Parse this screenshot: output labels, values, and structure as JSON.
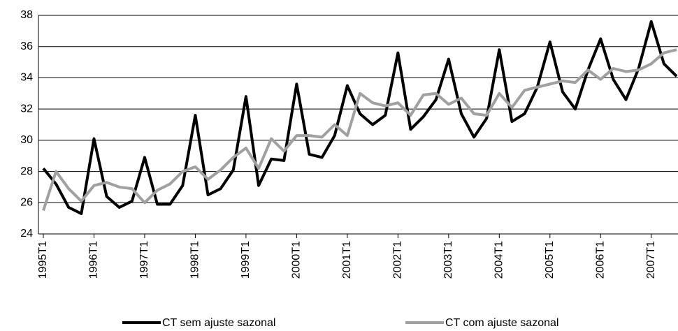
{
  "chart_data": {
    "type": "line",
    "categories": [
      "1995T1",
      null,
      null,
      null,
      "1996T1",
      null,
      null,
      null,
      "1997T1",
      null,
      null,
      null,
      "1998T1",
      null,
      null,
      null,
      "1999T1",
      null,
      null,
      null,
      "2000T1",
      null,
      null,
      null,
      "2001T1",
      null,
      null,
      null,
      "2002T1",
      null,
      null,
      null,
      "2003T1",
      null,
      null,
      null,
      "2004T1",
      null,
      null,
      null,
      "2005T1",
      null,
      null,
      null,
      "2006T1",
      null,
      null,
      null,
      "2007T1",
      null,
      null
    ],
    "series": [
      {
        "name": "CT sem ajuste sazonal",
        "color": "#000000",
        "values": [
          28.2,
          27.2,
          25.7,
          25.3,
          30.1,
          26.4,
          25.7,
          26.1,
          28.9,
          25.9,
          25.9,
          27.1,
          31.6,
          26.5,
          26.9,
          28.1,
          32.8,
          27.1,
          28.8,
          28.7,
          33.6,
          29.1,
          28.9,
          30.3,
          33.5,
          31.7,
          31.0,
          31.6,
          35.6,
          30.7,
          31.5,
          32.6,
          35.2,
          31.7,
          30.2,
          31.4,
          35.8,
          31.2,
          31.7,
          33.4,
          36.3,
          33.1,
          32.0,
          34.5,
          36.5,
          33.9,
          32.6,
          34.6,
          37.6,
          34.9,
          34.1
        ]
      },
      {
        "name": "CT com ajuste sazonal",
        "color": "#a0a0a0",
        "values": [
          25.5,
          28.0,
          26.9,
          26.1,
          27.1,
          27.3,
          27.0,
          26.9,
          26.0,
          26.8,
          27.2,
          28.0,
          28.3,
          27.5,
          28.1,
          28.9,
          29.5,
          28.2,
          30.1,
          29.3,
          30.3,
          30.3,
          30.2,
          31.0,
          30.3,
          33.0,
          32.4,
          32.2,
          32.4,
          31.6,
          32.9,
          33.0,
          32.3,
          32.7,
          31.7,
          31.6,
          33.0,
          32.1,
          33.2,
          33.4,
          33.6,
          33.8,
          33.7,
          34.5,
          33.9,
          34.6,
          34.4,
          34.5,
          34.9,
          35.6,
          35.8
        ]
      }
    ],
    "ylim": [
      24,
      38
    ],
    "yticks": [
      24,
      26,
      28,
      30,
      32,
      34,
      36,
      38
    ],
    "grid": true
  }
}
